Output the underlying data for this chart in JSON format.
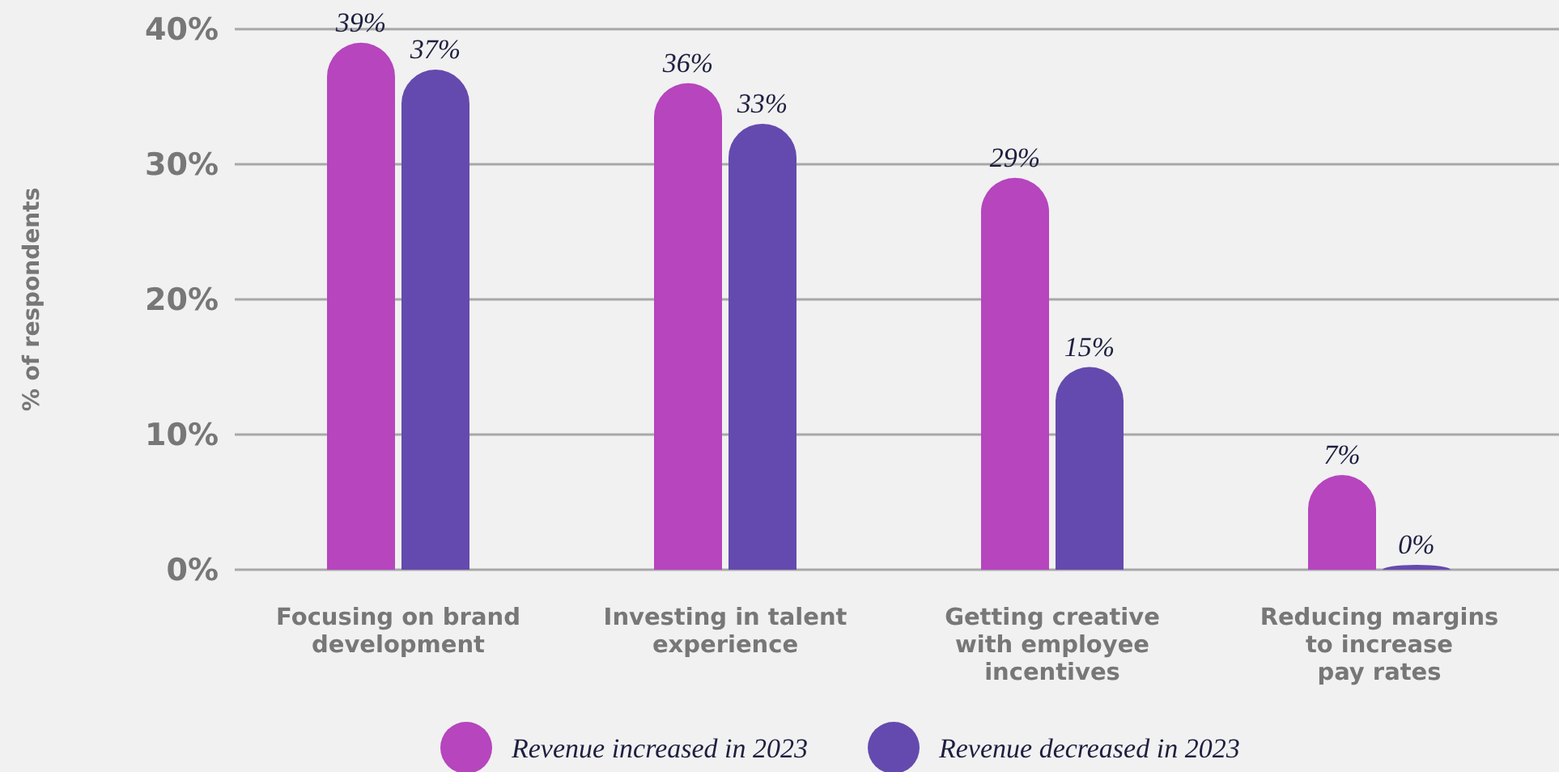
{
  "chart_data": {
    "type": "bar",
    "ylabel": "% of respondents",
    "categories": [
      "Focusing on brand\ndevelopment",
      "Investing in talent\nexperience",
      "Getting creative\nwith employee\nincentives",
      "Reducing margins\nto increase\npay rates"
    ],
    "series": [
      {
        "name": "Revenue increased in 2023",
        "color": "#b645be",
        "values": [
          39,
          36,
          29,
          7
        ],
        "value_labels": [
          "39%",
          "36%",
          "29%",
          "7%"
        ]
      },
      {
        "name": "Revenue decreased in 2023",
        "color": "#644aae",
        "values": [
          37,
          33,
          15,
          0
        ],
        "value_labels": [
          "37%",
          "33%",
          "15%",
          "0%"
        ]
      }
    ],
    "ylim": [
      0,
      40
    ],
    "yticks": [
      {
        "value": 0,
        "label": "0%"
      },
      {
        "value": 10,
        "label": "10%"
      },
      {
        "value": 20,
        "label": "20%"
      },
      {
        "value": 30,
        "label": "30%"
      },
      {
        "value": 40,
        "label": "40%"
      }
    ],
    "grid": "y",
    "legend": "bottom"
  }
}
